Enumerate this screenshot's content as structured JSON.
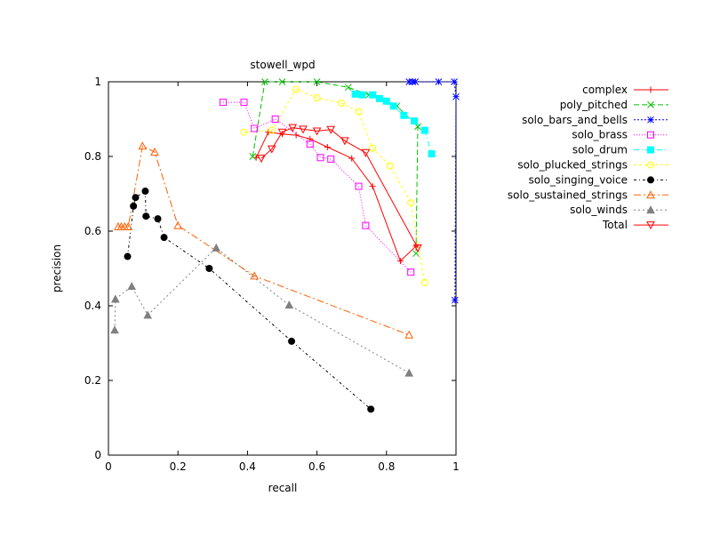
{
  "chart_data": {
    "type": "line",
    "title": "stowell_wpd",
    "xlabel": "recall",
    "ylabel": "precision",
    "xlim": [
      0,
      1
    ],
    "ylim": [
      0,
      1
    ],
    "xticks": [
      0,
      0.2,
      0.4,
      0.6,
      0.8,
      1
    ],
    "xtick_labels": [
      "0",
      "0.2",
      "0.4",
      "0.6",
      "0.8",
      "1"
    ],
    "yticks": [
      0,
      0.2,
      0.4,
      0.6,
      0.8,
      1
    ],
    "ytick_labels": [
      "0",
      "0.2",
      "0.4",
      "0.6",
      "0.8",
      "1"
    ],
    "grid": false,
    "legend_position": "outside-right",
    "series": [
      {
        "name": "complex",
        "color": "#ff0000",
        "marker": "plus",
        "dash": "",
        "points": [
          [
            0.425,
            0.797
          ],
          [
            0.46,
            0.865
          ],
          [
            0.5,
            0.86
          ],
          [
            0.54,
            0.857
          ],
          [
            0.58,
            0.847
          ],
          [
            0.63,
            0.825
          ],
          [
            0.7,
            0.795
          ],
          [
            0.76,
            0.72
          ],
          [
            0.84,
            0.52
          ],
          [
            0.885,
            0.56
          ]
        ]
      },
      {
        "name": "poly_pitched",
        "color": "#00c000",
        "marker": "x",
        "dash": "6,3",
        "points": [
          [
            0.415,
            0.8
          ],
          [
            0.45,
            1.0
          ],
          [
            0.5,
            1.0
          ],
          [
            0.6,
            1.0
          ],
          [
            0.69,
            0.985
          ],
          [
            0.75,
            0.965
          ],
          [
            0.83,
            0.935
          ],
          [
            0.89,
            0.88
          ],
          [
            0.885,
            0.54
          ]
        ]
      },
      {
        "name": "solo_bars_and_bells",
        "color": "#0000ff",
        "marker": "star",
        "dash": "2,2",
        "points": [
          [
            0.865,
            1.0
          ],
          [
            0.875,
            1.0
          ],
          [
            0.883,
            1.0
          ],
          [
            0.95,
            1.0
          ],
          [
            0.995,
            1.0
          ],
          [
            1.0,
            0.96
          ],
          [
            0.997,
            0.415
          ]
        ]
      },
      {
        "name": "solo_brass",
        "color": "#ff00ff",
        "marker": "square",
        "dash": "1,2",
        "points": [
          [
            0.33,
            0.945
          ],
          [
            0.39,
            0.945
          ],
          [
            0.42,
            0.875
          ],
          [
            0.48,
            0.9
          ],
          [
            0.58,
            0.833
          ],
          [
            0.61,
            0.797
          ],
          [
            0.64,
            0.793
          ],
          [
            0.72,
            0.72
          ],
          [
            0.74,
            0.615
          ],
          [
            0.87,
            0.49
          ]
        ]
      },
      {
        "name": "solo_drum",
        "color": "#00ffff",
        "marker": "fsquare",
        "dash": "6,3,1,3",
        "points": [
          [
            0.71,
            0.967
          ],
          [
            0.73,
            0.965
          ],
          [
            0.76,
            0.965
          ],
          [
            0.78,
            0.955
          ],
          [
            0.8,
            0.948
          ],
          [
            0.82,
            0.935
          ],
          [
            0.85,
            0.91
          ],
          [
            0.88,
            0.895
          ],
          [
            0.91,
            0.87
          ],
          [
            0.93,
            0.807
          ]
        ]
      },
      {
        "name": "solo_plucked_strings",
        "color": "#ffff00",
        "marker": "circle",
        "dash": "3,3",
        "points": [
          [
            0.39,
            0.865
          ],
          [
            0.47,
            0.87
          ],
          [
            0.54,
            0.98
          ],
          [
            0.6,
            0.957
          ],
          [
            0.67,
            0.943
          ],
          [
            0.72,
            0.92
          ],
          [
            0.76,
            0.822
          ],
          [
            0.81,
            0.775
          ],
          [
            0.87,
            0.676
          ],
          [
            0.91,
            0.462
          ]
        ]
      },
      {
        "name": "solo_singing_voice",
        "color": "#000000",
        "marker": "fcircle",
        "dash": "3,3,1,3",
        "points": [
          [
            0.055,
            0.532
          ],
          [
            0.072,
            0.667
          ],
          [
            0.078,
            0.69
          ],
          [
            0.106,
            0.707
          ],
          [
            0.108,
            0.64
          ],
          [
            0.142,
            0.633
          ],
          [
            0.16,
            0.583
          ],
          [
            0.29,
            0.5
          ],
          [
            0.527,
            0.305
          ],
          [
            0.755,
            0.123
          ]
        ]
      },
      {
        "name": "solo_sustained_strings",
        "color": "#ff6000",
        "marker": "triangle",
        "dash": "8,3,2,3",
        "points": [
          [
            0.028,
            0.612
          ],
          [
            0.037,
            0.612
          ],
          [
            0.047,
            0.612
          ],
          [
            0.057,
            0.612
          ],
          [
            0.098,
            0.828
          ],
          [
            0.133,
            0.812
          ],
          [
            0.2,
            0.615
          ],
          [
            0.42,
            0.48
          ],
          [
            0.865,
            0.322
          ]
        ]
      },
      {
        "name": "solo_winds",
        "color": "#808080",
        "marker": "ftriangle",
        "dash": "2,3",
        "points": [
          [
            0.018,
            0.335
          ],
          [
            0.02,
            0.418
          ],
          [
            0.067,
            0.452
          ],
          [
            0.113,
            0.375
          ],
          [
            0.31,
            0.555
          ],
          [
            0.52,
            0.402
          ],
          [
            0.865,
            0.22
          ]
        ]
      },
      {
        "name": "Total",
        "color": "#ff0000",
        "marker": "itriangle",
        "dash": "",
        "points": [
          [
            0.44,
            0.795
          ],
          [
            0.47,
            0.82
          ],
          [
            0.5,
            0.865
          ],
          [
            0.53,
            0.877
          ],
          [
            0.56,
            0.873
          ],
          [
            0.6,
            0.868
          ],
          [
            0.64,
            0.872
          ],
          [
            0.68,
            0.842
          ],
          [
            0.74,
            0.81
          ],
          [
            0.89,
            0.555
          ]
        ]
      }
    ]
  }
}
